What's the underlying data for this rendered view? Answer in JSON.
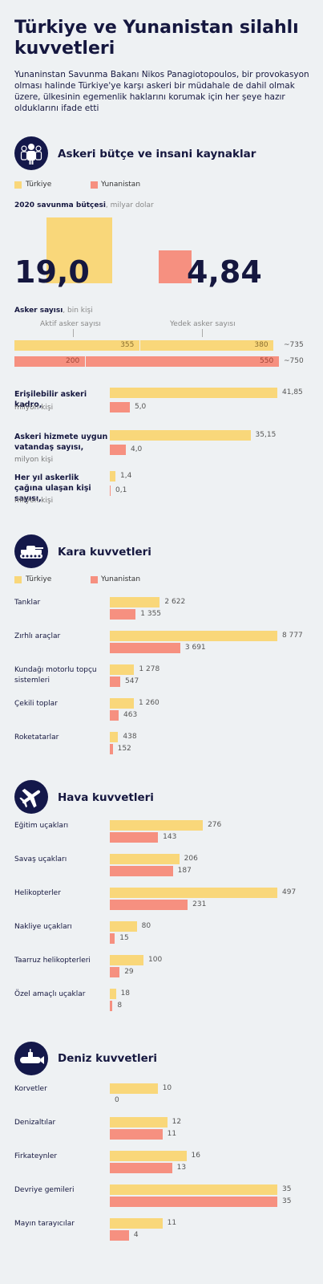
{
  "header": {
    "title": "Türkiye ve Yunanistan silahlı kuvvetleri",
    "subtitle": "Yunaninstan Savunma Bakanı Nikos Panagiotopoulos, bir provokasyon olması halinde Türkiye'ye karşı askeri bir müdahale de dahil olmak üzere, ülkesinin egemenlik haklarını korumak için her şeye hazır olduklarını ifade etti"
  },
  "colors": {
    "turkiye": "#f9d77a",
    "yunanistan": "#f69080",
    "dark": "#14184a"
  },
  "legend": {
    "turkiye": "Türkiye",
    "yunanistan": "Yunanistan"
  },
  "sections": {
    "budget": {
      "title": "Askeri bütçe ve insani kaynaklar",
      "icon": "people-icon"
    },
    "land": {
      "title": "Kara kuvvetleri",
      "icon": "tank-icon"
    },
    "air": {
      "title": "Hava kuvvetleri",
      "icon": "airplane-icon"
    },
    "navy": {
      "title": "Deniz kuvvetleri",
      "icon": "submarine-icon"
    }
  },
  "chart_data": [
    {
      "type": "bar",
      "title": "2020 savunma bütçesi",
      "unit": "milyar dolar",
      "categories": [
        "Türkiye",
        "Yunanistan"
      ],
      "values": [
        19.0,
        4.84
      ],
      "labels": [
        "19,0",
        "4,84"
      ]
    },
    {
      "type": "bar",
      "title": "Asker sayısı",
      "unit": "bin kişi",
      "segment_labels": [
        "Aktif asker sayısı",
        "Yedek asker sayısı"
      ],
      "series": [
        {
          "name": "Türkiye",
          "active": 355,
          "reserve": 380,
          "total_label": "~735"
        },
        {
          "name": "Yunanistan",
          "active": 200,
          "reserve": 550,
          "total_label": "~750"
        }
      ]
    },
    {
      "type": "bar",
      "categories": [
        {
          "label": "Erişilebilir askeri kadro,",
          "unit": "milyon kişi"
        },
        {
          "label": "Askeri hizmete uygun vatandaş sayısı,",
          "unit": "milyon kişi"
        },
        {
          "label": "Her yıl askerlik çağına ulaşan kişi sayısı,",
          "unit": "milyon kişi"
        }
      ],
      "series": [
        {
          "name": "Türkiye",
          "values": [
            41.85,
            35.15,
            1.4
          ],
          "labels": [
            "41,85",
            "35,15",
            "1,4"
          ]
        },
        {
          "name": "Yunanistan",
          "values": [
            5.0,
            4.0,
            0.1
          ],
          "labels": [
            "5,0",
            "4,0",
            "0,1"
          ]
        }
      ]
    },
    {
      "type": "bar",
      "categories": [
        "Tanklar",
        "Zırhlı araçlar",
        "Kundağı motorlu topçu sistemleri",
        "Çekili toplar",
        "Roketatarlar"
      ],
      "series": [
        {
          "name": "Türkiye",
          "values": [
            2622,
            8777,
            1278,
            1260,
            438
          ],
          "labels": [
            "2 622",
            "8 777",
            "1 278",
            "1 260",
            "438"
          ]
        },
        {
          "name": "Yunanistan",
          "values": [
            1355,
            3691,
            547,
            463,
            152
          ],
          "labels": [
            "1 355",
            "3 691",
            "547",
            "463",
            "152"
          ]
        }
      ]
    },
    {
      "type": "bar",
      "categories": [
        "Eğitim uçakları",
        "Savaş uçakları",
        "Helikopterler",
        "Nakliye uçakları",
        "Taarruz helikopterleri",
        "Özel amaçlı uçaklar"
      ],
      "series": [
        {
          "name": "Türkiye",
          "values": [
            276,
            206,
            497,
            80,
            100,
            18
          ],
          "labels": [
            "276",
            "206",
            "497",
            "80",
            "100",
            "18"
          ]
        },
        {
          "name": "Yunanistan",
          "values": [
            143,
            187,
            231,
            15,
            29,
            8
          ],
          "labels": [
            "143",
            "187",
            "231",
            "15",
            "29",
            "8"
          ]
        }
      ]
    },
    {
      "type": "bar",
      "categories": [
        "Korvetler",
        "Denizaltılar",
        "Firkateynler",
        "Devriye gemileri",
        "Mayın tarayıcılar"
      ],
      "series": [
        {
          "name": "Türkiye",
          "values": [
            10,
            12,
            16,
            35,
            11
          ],
          "labels": [
            "10",
            "12",
            "16",
            "35",
            "11"
          ]
        },
        {
          "name": "Yunanistan",
          "values": [
            0,
            11,
            13,
            35,
            4
          ],
          "labels": [
            "0",
            "11",
            "13",
            "35",
            "4"
          ]
        }
      ]
    }
  ]
}
